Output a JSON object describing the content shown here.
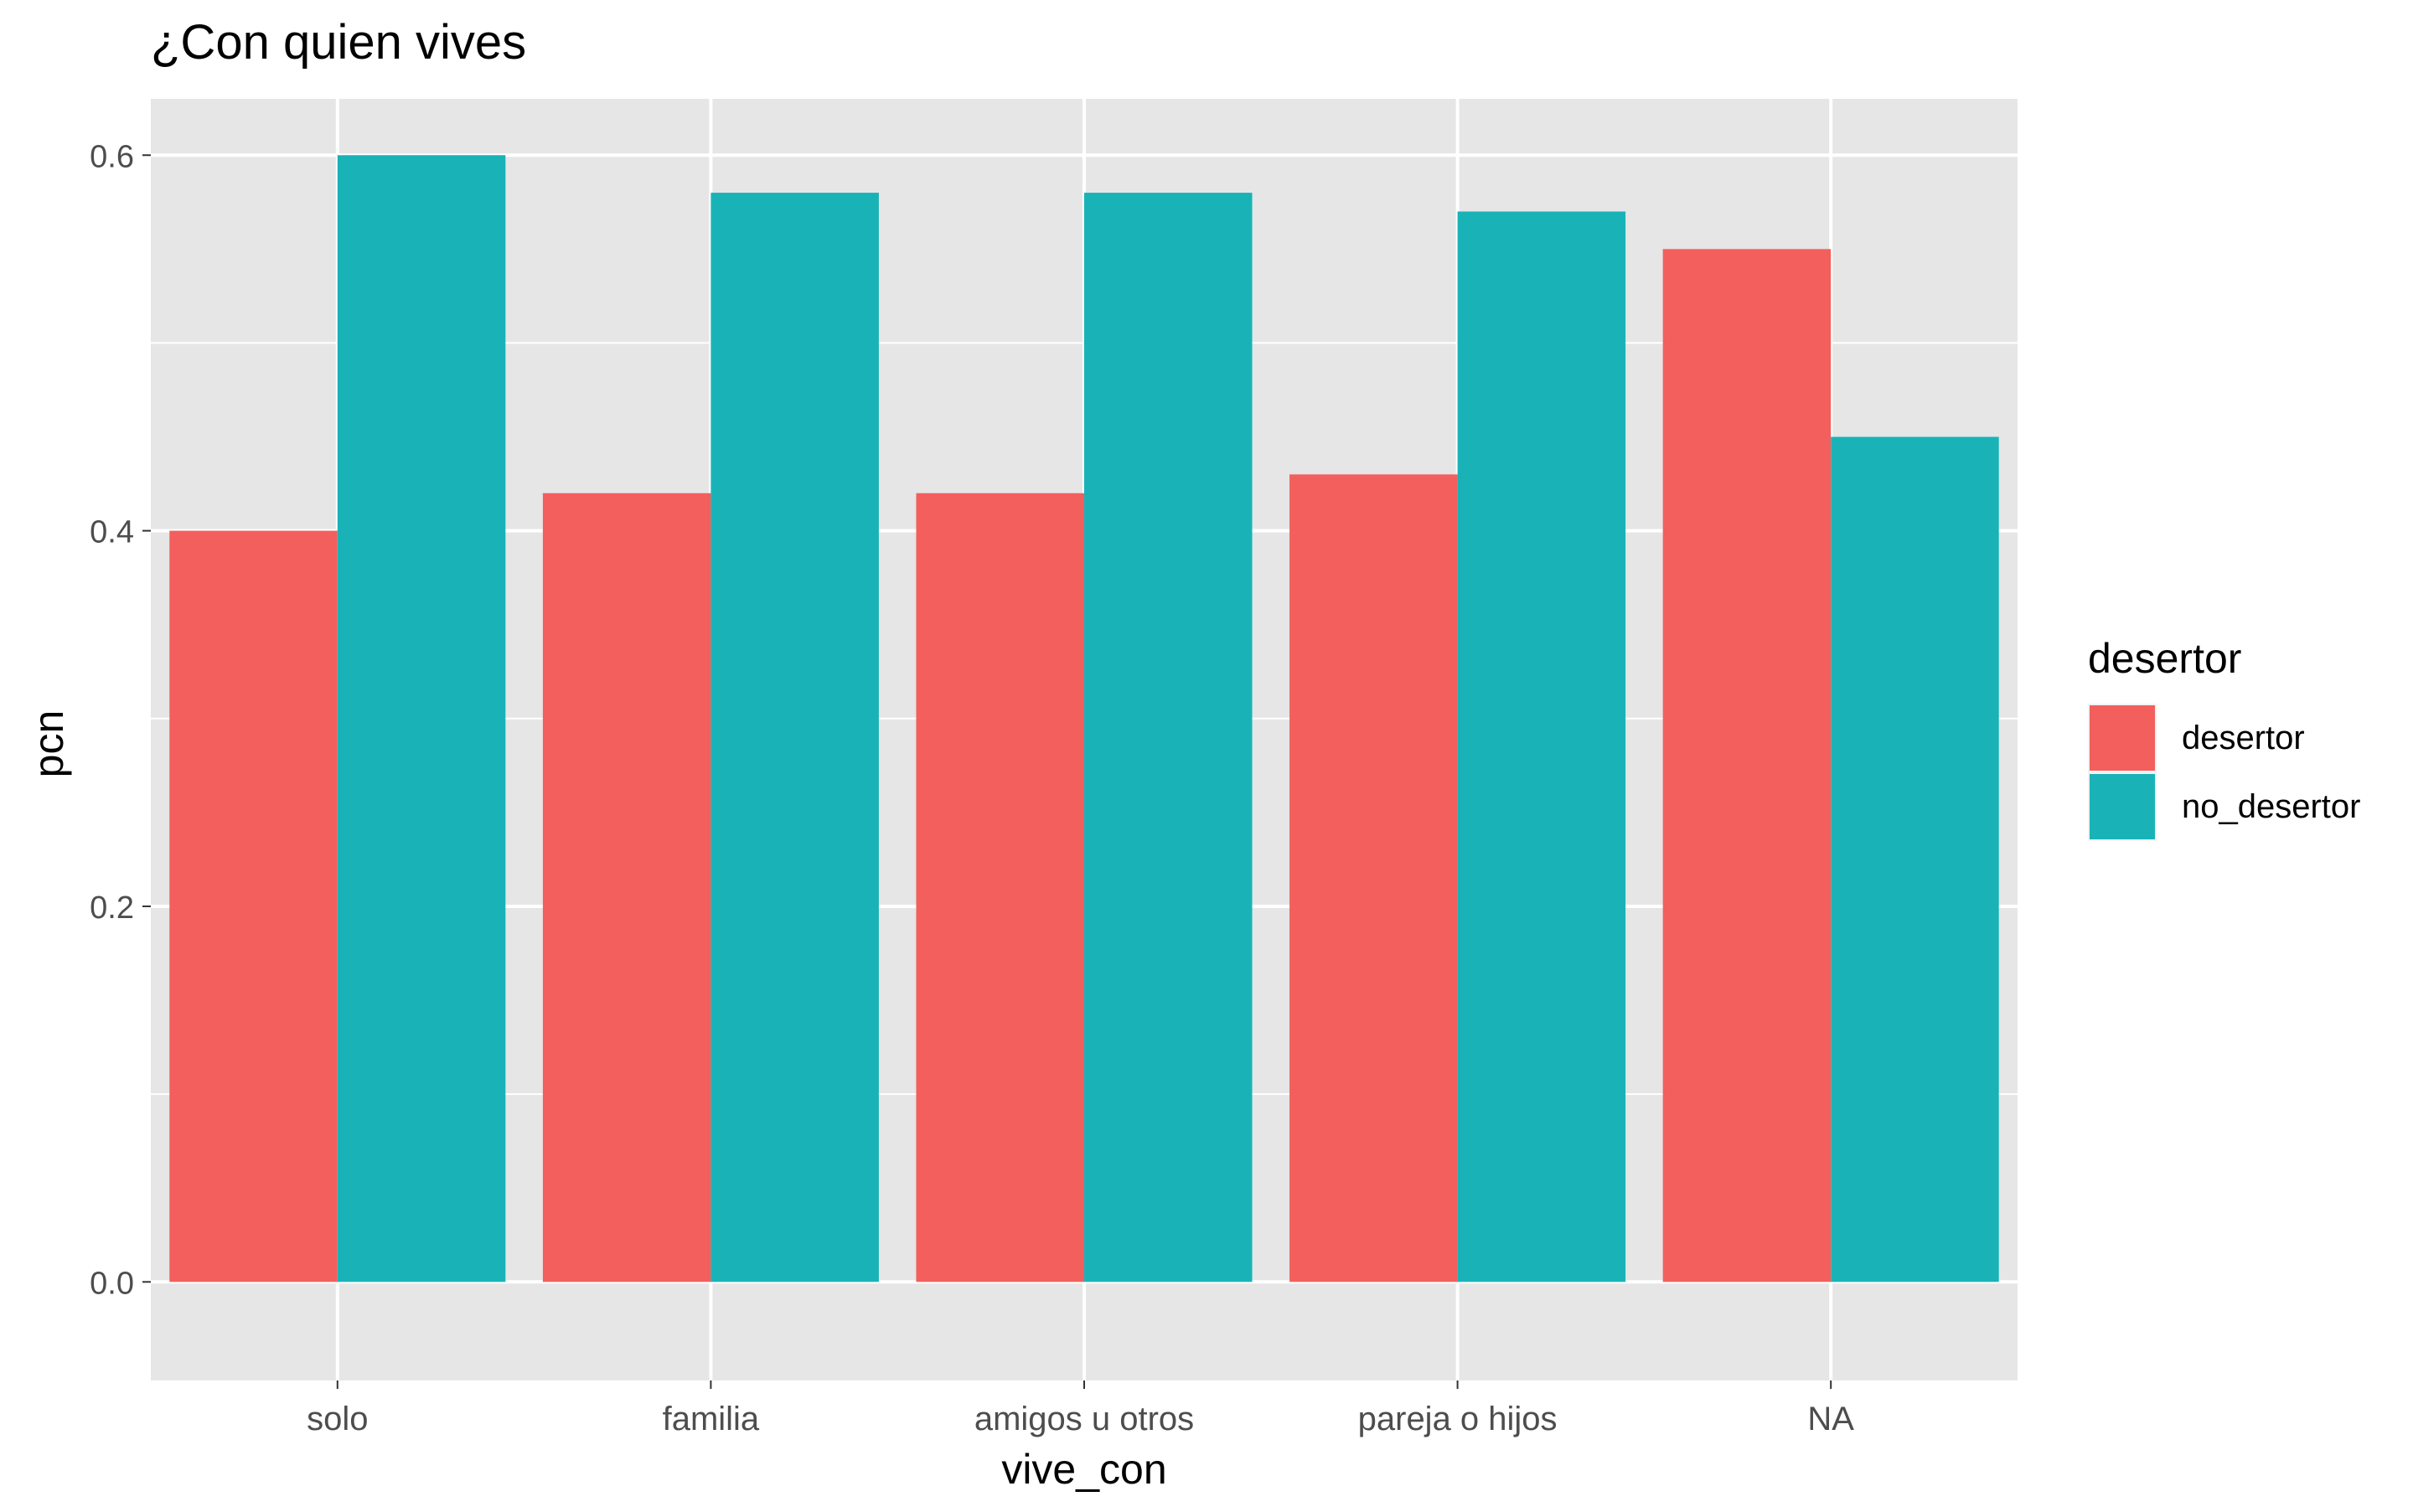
{
  "chart_data": {
    "type": "bar",
    "title": "¿Con quien vives",
    "xlabel": "vive_con",
    "ylabel": "pcn",
    "categories": [
      "solo",
      "familia",
      "amigos u otros",
      "pareja o hijos",
      "NA"
    ],
    "series": [
      {
        "name": "desertor",
        "values": [
          0.4,
          0.42,
          0.42,
          0.43,
          0.55
        ],
        "color": "#F25F5C"
      },
      {
        "name": "no_desertor",
        "values": [
          0.6,
          0.58,
          0.58,
          0.57,
          0.45
        ],
        "color": "#19B3B7"
      }
    ],
    "ylim": [
      -0.0525,
      0.63
    ],
    "yticks": [
      0.0,
      0.2,
      0.4,
      0.6
    ],
    "ytick_labels": [
      "0.0",
      "0.2",
      "0.4",
      "0.6"
    ],
    "grid": true,
    "legend": {
      "title": "desertor",
      "placement": "right"
    },
    "panel_background": "#E6E6E6",
    "grid_color": "#FFFFFF"
  }
}
